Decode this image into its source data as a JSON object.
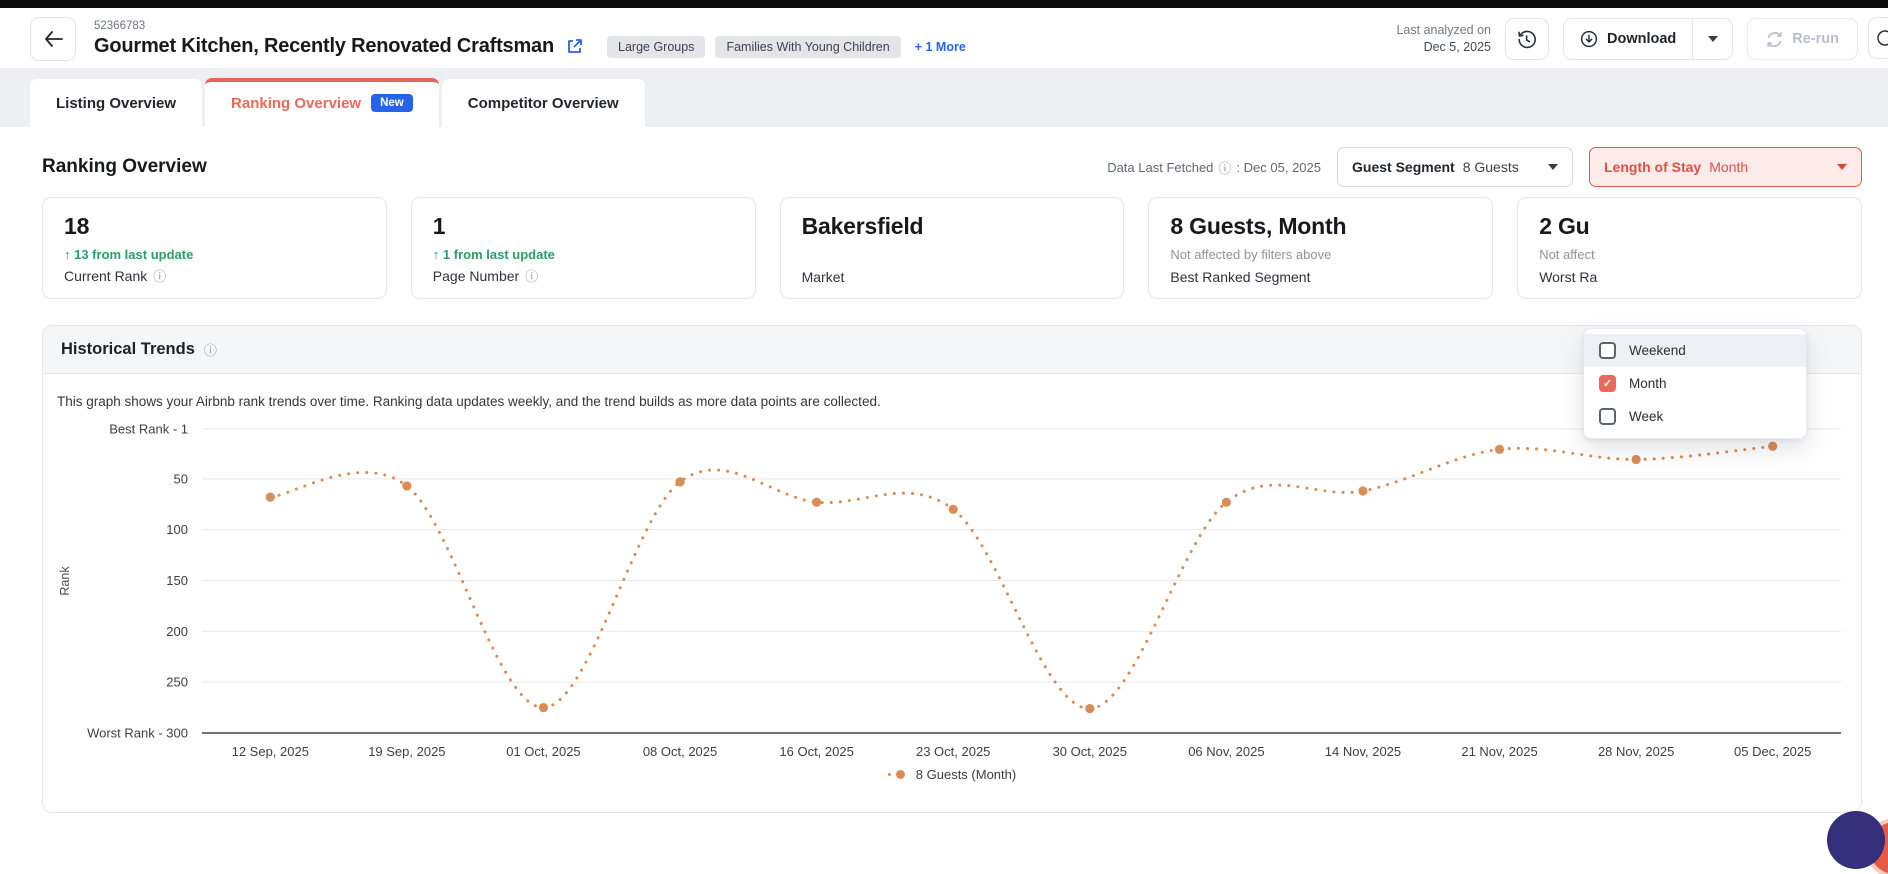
{
  "header": {
    "listing_id": "52366783",
    "title": "Gourmet Kitchen, Recently Renovated Craftsman",
    "tags": [
      "Large Groups",
      "Families With Young Children"
    ],
    "more_tags": "+ 1 More",
    "last_analyzed_line1": "Last analyzed on",
    "last_analyzed_line2": "Dec 5, 2025",
    "download_label": "Download",
    "rerun_label": "Re-run"
  },
  "tabs": [
    {
      "label": "Listing Overview",
      "active": false
    },
    {
      "label": "Ranking Overview",
      "badge": "New",
      "active": true
    },
    {
      "label": "Competitor Overview",
      "active": false
    }
  ],
  "filters": {
    "section_title": "Ranking Overview",
    "data_last_fetched_label": "Data Last Fetched",
    "data_last_fetched_value": ": Dec 05, 2025",
    "guest_segment_label": "Guest Segment",
    "guest_segment_value": "8 Guests",
    "length_of_stay_label": "Length of Stay",
    "length_of_stay_value": "Month",
    "length_of_stay_options": [
      {
        "label": "Weekend",
        "checked": false
      },
      {
        "label": "Month",
        "checked": true
      },
      {
        "label": "Week",
        "checked": false
      }
    ]
  },
  "stat_cards": [
    {
      "value": "18",
      "delta": "↑ 13 from last update",
      "label": "Current Rank",
      "info": true
    },
    {
      "value": "1",
      "delta": "↑ 1 from last update",
      "label": "Page Number",
      "info": true
    },
    {
      "value": "Bakersfield",
      "label": "Market",
      "info": false
    },
    {
      "value": "8 Guests, Month",
      "note": "Not affected by filters above",
      "label": "Best Ranked Segment",
      "info": false
    },
    {
      "value": "2 Gu",
      "note": "Not affect",
      "label": "Worst Ra",
      "info": false
    }
  ],
  "historical_trends": {
    "title": "Historical Trends",
    "description": "This graph shows your Airbnb rank trends over time. Ranking data updates weekly, and the trend builds as more data points are collected.",
    "legend_label": "8 Guests (Month)"
  },
  "chart_data": {
    "type": "line",
    "line_style": "dotted",
    "color": "#d98c55",
    "x": [
      "12 Sep, 2025",
      "19 Sep, 2025",
      "01 Oct, 2025",
      "08 Oct, 2025",
      "16 Oct, 2025",
      "23 Oct, 2025",
      "30 Oct, 2025",
      "06 Nov, 2025",
      "14 Nov, 2025",
      "21 Nov, 2025",
      "28 Nov, 2025",
      "05 Dec, 2025"
    ],
    "series": [
      {
        "name": "8 Guests (Month)",
        "values": [
          68,
          57,
          275,
          53,
          73,
          80,
          276,
          73,
          62,
          21,
          31,
          18
        ]
      }
    ],
    "ylabel": "Rank",
    "y_ticks": [
      {
        "label": "Best Rank - 1",
        "rank": 1
      },
      {
        "label": "50",
        "rank": 50
      },
      {
        "label": "100",
        "rank": 100
      },
      {
        "label": "150",
        "rank": 150
      },
      {
        "label": "200",
        "rank": 200
      },
      {
        "label": "250",
        "rank": 250
      },
      {
        "label": "Worst Rank - 300",
        "rank": 300
      }
    ],
    "ylim": [
      1,
      300
    ],
    "y_inverted": true,
    "grid": true,
    "legend_position": "bottom"
  }
}
